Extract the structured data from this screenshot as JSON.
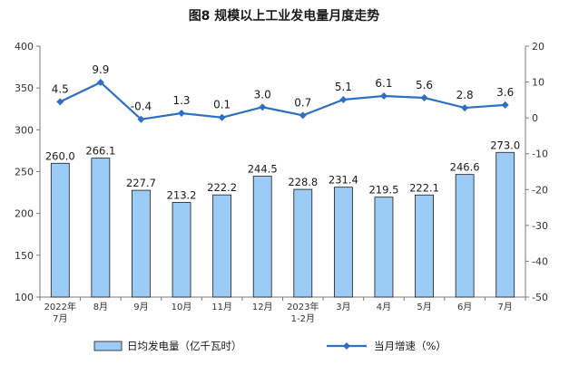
{
  "colors": {
    "bar_fill": "#9CCBF5",
    "bar_stroke": "#1a1a1a",
    "line": "#2E6FC0",
    "axis": "#7a7a7a"
  },
  "chart_data": {
    "type": "bar",
    "title": "图8  规模以上工业发电量月度走势",
    "categories": [
      [
        "2022年",
        "7月"
      ],
      [
        "8月"
      ],
      [
        "9月"
      ],
      [
        "10月"
      ],
      [
        "11月"
      ],
      [
        "12月"
      ],
      [
        "2023年",
        "1-2月"
      ],
      [
        "3月"
      ],
      [
        "4月"
      ],
      [
        "5月"
      ],
      [
        "6月"
      ],
      [
        "7月"
      ]
    ],
    "y_left": {
      "min": 100,
      "max": 400,
      "ticks": [
        100,
        150,
        200,
        250,
        300,
        350,
        400
      ]
    },
    "y_right": {
      "min": -50,
      "max": 20,
      "ticks": [
        -50,
        -40,
        -30,
        -20,
        -10,
        0,
        10,
        20
      ]
    },
    "series": [
      {
        "name": "日均发电量（亿千瓦时）",
        "type": "bar",
        "axis": "left",
        "values": [
          260.0,
          266.1,
          227.7,
          213.2,
          222.2,
          244.5,
          228.8,
          231.4,
          219.5,
          222.1,
          246.6,
          273.0
        ],
        "labels": [
          "260.0",
          "266.1",
          "227.7",
          "213.2",
          "222.2",
          "244.5",
          "228.8",
          "231.4",
          "219.5",
          "222.1",
          "246.6",
          "273.0"
        ]
      },
      {
        "name": "当月增速（%）",
        "type": "line",
        "axis": "right",
        "values": [
          4.5,
          9.9,
          -0.4,
          1.3,
          0.1,
          3.0,
          0.7,
          5.1,
          6.1,
          5.6,
          2.8,
          3.6
        ],
        "labels": [
          "4.5",
          "9.9",
          "-0.4",
          "1.3",
          "0.1",
          "3.0",
          "0.7",
          "5.1",
          "6.1",
          "5.6",
          "2.8",
          "3.6"
        ]
      }
    ],
    "legend": {
      "position": "bottom",
      "items": [
        "日均发电量（亿千瓦时）",
        "当月增速（%）"
      ]
    },
    "grid": false
  }
}
